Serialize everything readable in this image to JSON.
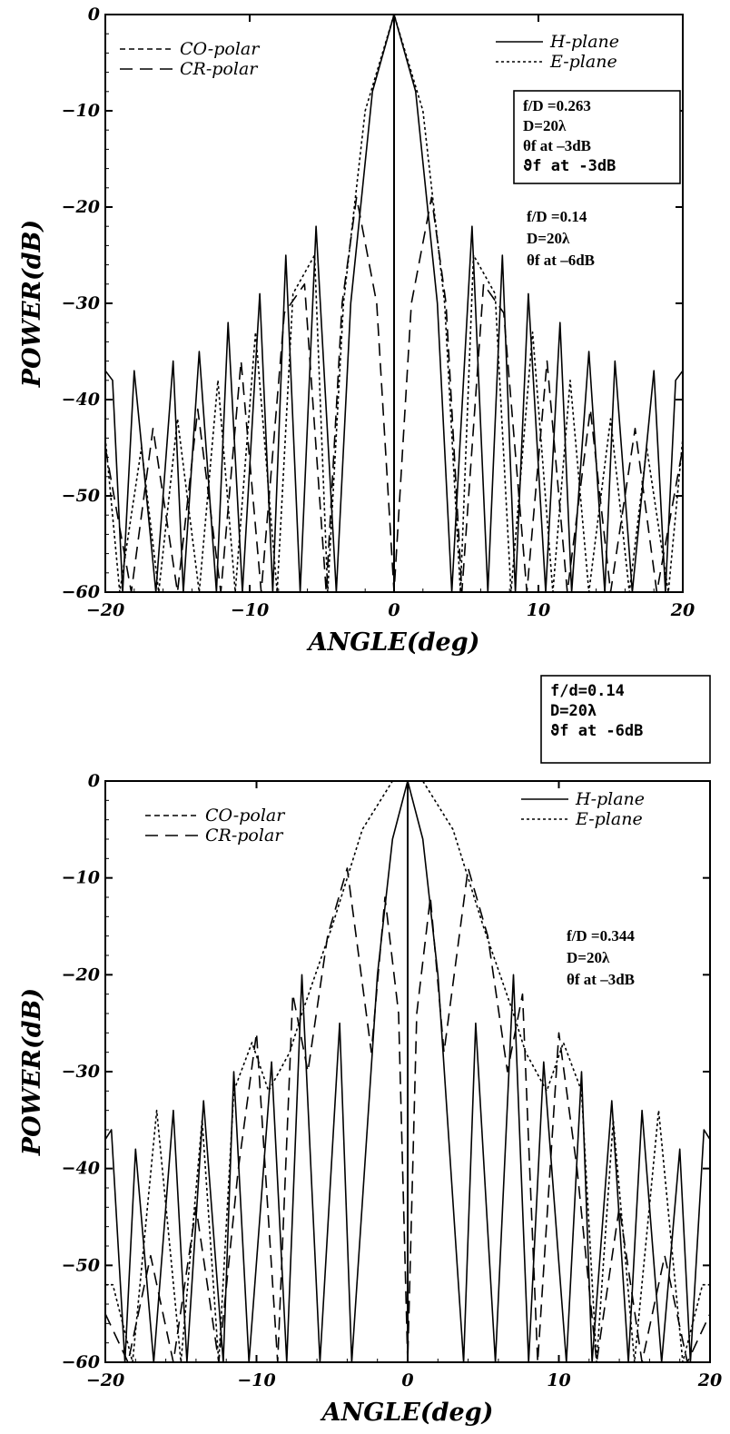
{
  "chart_data": [
    {
      "type": "line",
      "xlabel": "ANGLE(deg)",
      "ylabel": "POWER(dB)",
      "xlim": [
        -20,
        20
      ],
      "ylim": [
        -60,
        0
      ],
      "x_ticks": [
        "-20",
        "-10",
        "0",
        "10",
        "20"
      ],
      "y_ticks": [
        "0",
        "-10",
        "-20",
        "-30",
        "-40",
        "-50",
        "-60"
      ],
      "grid": false,
      "legend_styles": [
        {
          "label": "CO-polar",
          "style": "short-dash"
        },
        {
          "label": "CR-polar",
          "style": "long-dash"
        }
      ],
      "legend_planes": [
        {
          "label": "H-plane",
          "style": "solid"
        },
        {
          "label": "E-plane",
          "style": "dotted"
        }
      ],
      "annotation_boxed": [
        "f/D =0.263",
        "D=20λ",
        "θf at –3dB",
        "ϑf at -3dB"
      ],
      "annotation_free": [
        "f/D =0.14",
        "D=20λ",
        "θf at –6dB"
      ],
      "series": [
        {
          "name": "CO-polar H-plane",
          "color": "#000000",
          "x": [
            0,
            1.5,
            3,
            4,
            5.4,
            6.5,
            7.5,
            8.4,
            9.3,
            10.5,
            11.5,
            12.3,
            13.5,
            14.6,
            15.3,
            16.5,
            18,
            18.8,
            19.5,
            20
          ],
          "y": [
            0,
            -8,
            -30,
            -60,
            -22,
            -60,
            -25,
            -60,
            -29,
            -60,
            -32,
            -60,
            -35,
            -60,
            -36,
            -60,
            -37,
            -60,
            -38,
            -37
          ]
        },
        {
          "name": "CO-polar E-plane",
          "color": "#000000",
          "x": [
            0,
            2,
            3.5,
            4.6,
            5.5,
            7,
            8.1,
            9.6,
            11,
            12.2,
            13.5,
            15,
            16.3,
            17.5,
            19,
            20
          ],
          "y": [
            0,
            -10,
            -30,
            -60,
            -25,
            -29,
            -60,
            -33,
            -60,
            -38,
            -60,
            -42,
            -60,
            -45,
            -60,
            -44
          ]
        },
        {
          "name": "CR-polar",
          "color": "#000000",
          "x": [
            0,
            1.2,
            2.6,
            3.6,
            4.7,
            6.2,
            7.6,
            9.2,
            10.6,
            12,
            13.6,
            15,
            16.7,
            18.2,
            20
          ],
          "y": [
            -60,
            -30,
            -19,
            -30,
            -60,
            -28,
            -31,
            -60,
            -36,
            -60,
            -41,
            -60,
            -43,
            -60,
            -45
          ]
        }
      ]
    },
    {
      "type": "line",
      "xlabel": "ANGLE(deg)",
      "ylabel": "POWER(dB)",
      "xlim": [
        -20,
        20
      ],
      "ylim": [
        -60,
        0
      ],
      "x_ticks": [
        "-20",
        "-10",
        "0",
        "10",
        "20"
      ],
      "y_ticks": [
        "0",
        "-10",
        "-20",
        "-30",
        "-40",
        "-50",
        "-60"
      ],
      "grid": false,
      "legend_styles": [
        {
          "label": "CO-polar",
          "style": "short-dash"
        },
        {
          "label": "CR-polar",
          "style": "long-dash"
        }
      ],
      "legend_planes": [
        {
          "label": "H-plane",
          "style": "solid"
        },
        {
          "label": "E-plane",
          "style": "dotted"
        }
      ],
      "annotation_boxed": [
        "f/d=0.14",
        "D=20λ",
        "ϑf at -6dB"
      ],
      "annotation_free": [
        "f/D =0.344",
        "D=20λ",
        "θf at –3dB"
      ],
      "series": [
        {
          "name": "CO-polar H-plane",
          "color": "#000000",
          "x": [
            0,
            1,
            2,
            3.7,
            4.5,
            5.8,
            7,
            8,
            9,
            10.5,
            11.5,
            12.2,
            13.5,
            14.6,
            15.5,
            16.8,
            18,
            18.7,
            19.6,
            20
          ],
          "y": [
            0,
            -6,
            -20,
            -60,
            -25,
            -60,
            -20,
            -60,
            -29,
            -60,
            -30,
            -60,
            -33,
            -60,
            -34,
            -60,
            -38,
            -60,
            -36,
            -37
          ]
        },
        {
          "name": "CO-polar E-plane",
          "color": "#000000",
          "x": [
            0,
            1,
            3,
            5,
            7,
            7.8,
            9.2,
            10.3,
            11.5,
            12.5,
            13.6,
            15,
            16.6,
            18.2,
            19.5,
            20
          ],
          "y": [
            0,
            0,
            -5,
            -15,
            -24,
            -28,
            -32,
            -27,
            -32,
            -60,
            -35,
            -60,
            -34,
            -60,
            -52,
            -52
          ]
        },
        {
          "name": "CR-polar",
          "color": "#000000",
          "x": [
            0,
            0.6,
            1.5,
            2.4,
            4,
            5.3,
            6.6,
            7.6,
            8.6,
            10,
            11.2,
            12.5,
            14,
            15.5,
            17,
            18.5,
            20
          ],
          "y": [
            -60,
            -24,
            -12,
            -28,
            -9,
            -16,
            -30,
            -22,
            -60,
            -26,
            -40,
            -60,
            -44,
            -60,
            -49,
            -60,
            -55
          ]
        }
      ]
    }
  ]
}
